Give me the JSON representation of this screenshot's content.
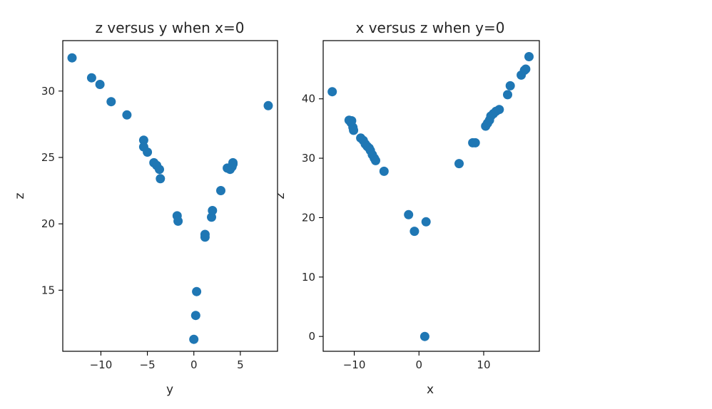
{
  "figure": {
    "marker_color": "#1f77b4"
  },
  "chart_data": [
    {
      "type": "scatter",
      "title": "z versus y when x=0",
      "xlabel": "y",
      "ylabel": "z",
      "xlim": [
        -14.1,
        9.0
      ],
      "ylim": [
        10.4,
        33.8
      ],
      "xticks": [
        -10,
        -5,
        0,
        5
      ],
      "yticks": [
        15,
        20,
        25,
        30
      ],
      "grid": false,
      "points": [
        [
          -13.1,
          32.5
        ],
        [
          -11.0,
          31.0
        ],
        [
          -10.1,
          30.5
        ],
        [
          -8.9,
          29.2
        ],
        [
          -7.2,
          28.2
        ],
        [
          -5.4,
          26.3
        ],
        [
          -5.4,
          25.8
        ],
        [
          -5.0,
          25.4
        ],
        [
          -4.3,
          24.6
        ],
        [
          -4.0,
          24.4
        ],
        [
          -3.7,
          24.1
        ],
        [
          -3.6,
          23.4
        ],
        [
          -1.8,
          20.6
        ],
        [
          -1.7,
          20.2
        ],
        [
          0.0,
          11.3
        ],
        [
          0.2,
          13.1
        ],
        [
          0.3,
          14.9
        ],
        [
          1.2,
          19.2
        ],
        [
          1.2,
          19.0
        ],
        [
          1.9,
          20.5
        ],
        [
          2.0,
          21.0
        ],
        [
          2.9,
          22.5
        ],
        [
          3.6,
          24.2
        ],
        [
          3.9,
          24.1
        ],
        [
          4.1,
          24.3
        ],
        [
          4.2,
          24.5
        ],
        [
          4.2,
          24.6
        ],
        [
          8.0,
          28.9
        ]
      ]
    },
    {
      "type": "scatter",
      "title": "x versus z when y=0",
      "xlabel": "x",
      "ylabel": "z",
      "xlim": [
        -14.8,
        18.6
      ],
      "ylim": [
        -2.5,
        49.8
      ],
      "xticks": [
        -10,
        0,
        10
      ],
      "yticks": [
        0,
        10,
        20,
        30,
        40
      ],
      "grid": false,
      "points": [
        [
          -13.4,
          41.2
        ],
        [
          -10.8,
          36.4
        ],
        [
          -10.5,
          36.0
        ],
        [
          -10.4,
          36.3
        ],
        [
          -10.2,
          35.2
        ],
        [
          -10.1,
          34.7
        ],
        [
          -9.0,
          33.4
        ],
        [
          -8.6,
          33.0
        ],
        [
          -8.3,
          32.4
        ],
        [
          -8.0,
          32.0
        ],
        [
          -7.7,
          31.7
        ],
        [
          -7.5,
          31.3
        ],
        [
          -7.2,
          30.6
        ],
        [
          -6.9,
          30.0
        ],
        [
          -6.7,
          29.6
        ],
        [
          -5.4,
          27.8
        ],
        [
          -1.6,
          20.5
        ],
        [
          -0.7,
          17.7
        ],
        [
          0.9,
          0.0
        ],
        [
          1.1,
          19.3
        ],
        [
          6.2,
          29.1
        ],
        [
          8.3,
          32.6
        ],
        [
          8.7,
          32.6
        ],
        [
          10.3,
          35.4
        ],
        [
          10.6,
          35.9
        ],
        [
          10.9,
          36.4
        ],
        [
          11.1,
          37.1
        ],
        [
          11.5,
          37.5
        ],
        [
          11.9,
          37.9
        ],
        [
          12.4,
          38.2
        ],
        [
          13.7,
          40.7
        ],
        [
          14.1,
          42.2
        ],
        [
          15.8,
          44.0
        ],
        [
          16.3,
          44.8
        ],
        [
          16.5,
          45.0
        ],
        [
          17.0,
          47.1
        ]
      ]
    }
  ]
}
